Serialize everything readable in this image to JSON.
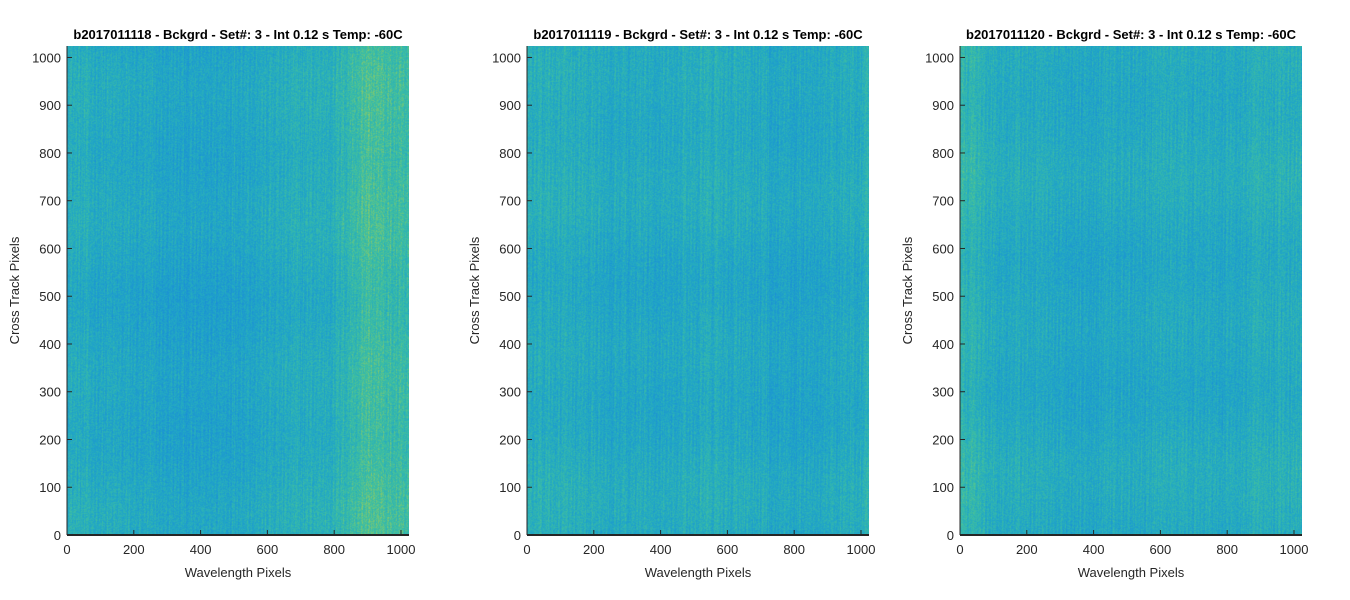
{
  "chart_data": [
    {
      "type": "heatmap",
      "title": "b2017011118 - Bckgrd - Set#: 3 - Int 0.12 s Temp: -60C",
      "xlabel": "Wavelength Pixels",
      "ylabel": "Cross Track Pixels",
      "xlim": [
        0,
        1024
      ],
      "ylim": [
        0,
        1024
      ],
      "xticks": [
        0,
        200,
        400,
        600,
        800,
        1000
      ],
      "yticks": [
        0,
        100,
        200,
        300,
        400,
        500,
        600,
        700,
        800,
        900,
        1000
      ],
      "colormap": [
        "#1a8fd6",
        "#22a8c4",
        "#3fbfa0",
        "#9ccc5a"
      ],
      "column_intensity_profile": {
        "x": [
          0,
          100,
          200,
          300,
          400,
          500,
          600,
          700,
          800,
          850,
          900,
          950,
          1024
        ],
        "level": [
          0.4,
          0.34,
          0.3,
          0.26,
          0.24,
          0.3,
          0.34,
          0.38,
          0.42,
          0.55,
          0.68,
          0.62,
          0.55
        ]
      },
      "grid": false
    },
    {
      "type": "heatmap",
      "title": "b2017011119 - Bckgrd - Set#: 3 - Int 0.12 s Temp: -60C",
      "xlabel": "Wavelength Pixels",
      "ylabel": "Cross Track Pixels",
      "xlim": [
        0,
        1024
      ],
      "ylim": [
        0,
        1024
      ],
      "xticks": [
        0,
        200,
        400,
        600,
        800,
        1000
      ],
      "yticks": [
        0,
        100,
        200,
        300,
        400,
        500,
        600,
        700,
        800,
        900,
        1000
      ],
      "colormap": [
        "#1a8fd6",
        "#22a8c4",
        "#3fbfa0",
        "#9ccc5a"
      ],
      "column_intensity_profile": {
        "x": [
          0,
          100,
          200,
          300,
          400,
          500,
          600,
          700,
          800,
          900,
          1024
        ],
        "level": [
          0.4,
          0.38,
          0.35,
          0.33,
          0.34,
          0.38,
          0.36,
          0.32,
          0.28,
          0.34,
          0.4
        ]
      },
      "grid": false
    },
    {
      "type": "heatmap",
      "title": "b2017011120 - Bckgrd - Set#: 3 - Int 0.12 s Temp: -60C",
      "xlabel": "Wavelength Pixels",
      "ylabel": "Cross Track Pixels",
      "xlim": [
        0,
        1024
      ],
      "ylim": [
        0,
        1024
      ],
      "xticks": [
        0,
        200,
        400,
        600,
        800,
        1000
      ],
      "yticks": [
        0,
        100,
        200,
        300,
        400,
        500,
        600,
        700,
        800,
        900,
        1000
      ],
      "colormap": [
        "#1a8fd6",
        "#22a8c4",
        "#3fbfa0",
        "#9ccc5a"
      ],
      "column_intensity_profile": {
        "x": [
          0,
          50,
          100,
          200,
          300,
          400,
          500,
          600,
          700,
          800,
          900,
          1024
        ],
        "level": [
          0.55,
          0.45,
          0.38,
          0.36,
          0.34,
          0.32,
          0.34,
          0.36,
          0.34,
          0.33,
          0.38,
          0.42
        ]
      },
      "grid": false
    }
  ]
}
